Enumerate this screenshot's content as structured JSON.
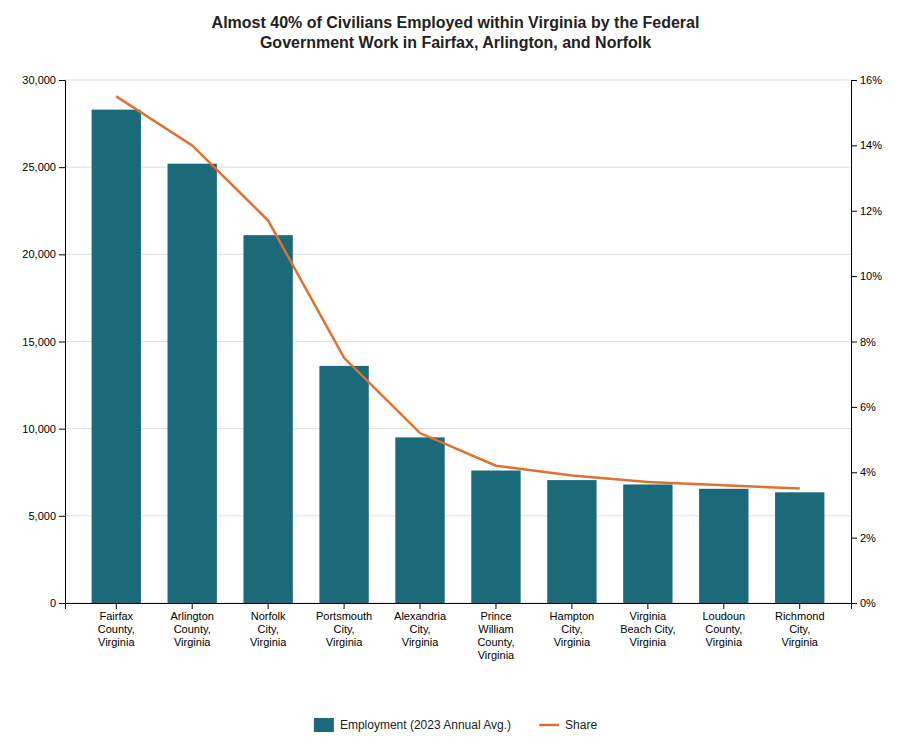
{
  "chart_data": {
    "type": "bar",
    "title": "Almost 40% of Civilians Employed within Virginia by the Federal\nGovernment Work in Fairfax, Arlington, and Norfolk",
    "categories": [
      "Fairfax\nCounty,\nVirginia",
      "Arlington\nCounty,\nVirginia",
      "Norfolk\nCity,\nVirginia",
      "Portsmouth\nCity,\nVirginia",
      "Alexandria\nCity,\nVirginia",
      "Prince\nWilliam\nCounty,\nVirginia",
      "Hampton\nCity,\nVirginia",
      "Virginia\nBeach City,\nVirginia",
      "Loudoun\nCounty,\nVirginia",
      "Richmond\nCity,\nVirginia"
    ],
    "series": [
      {
        "name": "Employment (2023 Annual Avg.)",
        "type": "bar",
        "color": "#1a6a7a",
        "values": [
          28300,
          25200,
          21100,
          13600,
          9500,
          7600,
          7050,
          6800,
          6550,
          6350
        ]
      },
      {
        "name": "Share",
        "type": "line",
        "axis": "y2",
        "color": "#e07030",
        "values": [
          0.155,
          0.14,
          0.117,
          0.075,
          0.052,
          0.042,
          0.039,
          0.037,
          0.036,
          0.035
        ]
      }
    ],
    "ylim": [
      0,
      30000
    ],
    "yticks": [
      0,
      {
        "value": 5000,
        "label": "5,000"
      },
      {
        "value": 10000,
        "label": "10,000"
      },
      {
        "value": 15000,
        "label": "15,000"
      },
      {
        "value": 20000,
        "label": "20,000"
      },
      {
        "value": 25000,
        "label": "25,000"
      },
      {
        "value": 30000,
        "label": "30,000"
      }
    ],
    "y2lim": [
      0,
      0.16
    ],
    "y2ticks": [
      {
        "value": 0,
        "label": "0%"
      },
      {
        "value": 0.02,
        "label": "2%"
      },
      {
        "value": 0.04,
        "label": "4%"
      },
      {
        "value": 0.06,
        "label": "6%"
      },
      {
        "value": 0.08,
        "label": "8%"
      },
      {
        "value": 0.1,
        "label": "10%"
      },
      {
        "value": 0.12,
        "label": "12%"
      },
      {
        "value": 0.14,
        "label": "14%"
      },
      {
        "value": 0.16,
        "label": "16%"
      }
    ],
    "grid": true,
    "legend": "bottom"
  }
}
